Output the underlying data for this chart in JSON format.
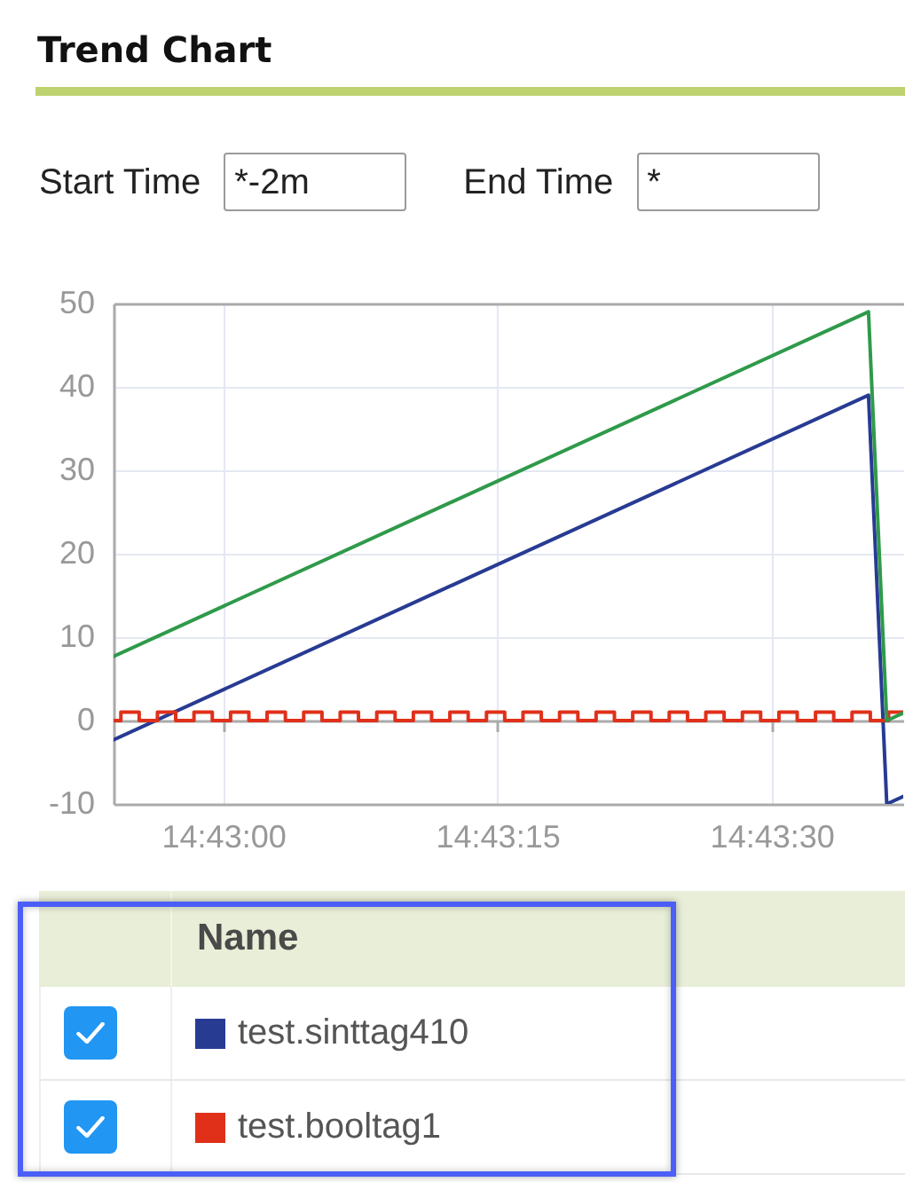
{
  "chart_data": {
    "type": "line",
    "title": "Trend Chart",
    "annotations": [
      "Start Time",
      "*-2m",
      "End Time",
      "*"
    ],
    "legend_title": "Name",
    "series": [
      {
        "name": "test.sinttag410",
        "color": "#283b93",
        "x": [
          14.715,
          14.726472,
          14.72675,
          14.727
        ],
        "values": [
          -2.3,
          39,
          -10,
          -9.1
        ]
      },
      {
        "name": "test.booltag1",
        "color": "#e0301a",
        "type": "step",
        "x": [
          14.715,
          14.715111,
          14.715389,
          14.715667,
          14.715944,
          14.716222,
          14.7165,
          14.716778,
          14.717056,
          14.717333,
          14.717611,
          14.717889,
          14.718167,
          14.718444,
          14.718722,
          14.719,
          14.719278,
          14.719556,
          14.719833,
          14.720111,
          14.720389,
          14.720667,
          14.720944,
          14.721222,
          14.7215,
          14.721778,
          14.722056,
          14.722333,
          14.722611,
          14.722889,
          14.723167,
          14.723444,
          14.723722,
          14.724,
          14.724278,
          14.724556,
          14.724833,
          14.725111,
          14.725389,
          14.725667,
          14.725944,
          14.726222,
          14.7265,
          14.726778,
          14.727
        ],
        "values": [
          0,
          1,
          0,
          1,
          0,
          1,
          0,
          1,
          0,
          1,
          0,
          1,
          0,
          1,
          0,
          1,
          0,
          1,
          0,
          1,
          0,
          1,
          0,
          1,
          0,
          1,
          0,
          1,
          0,
          1,
          0,
          1,
          0,
          1,
          0,
          1,
          0,
          1,
          0,
          1,
          0,
          1,
          0,
          1,
          1
        ]
      },
      {
        "color": "#2f9a4a",
        "x": [
          14.715,
          14.726472,
          14.72675,
          14.727
        ],
        "values": [
          7.7,
          49,
          0,
          0.9
        ]
      }
    ],
    "xlim": [
      14.715,
      14.727
    ],
    "xticks": [
      {
        "value": 14.716667,
        "label": "14:43:00"
      },
      {
        "value": 14.720833,
        "label": "14:43:15"
      },
      {
        "value": 14.725,
        "label": "14:43:30"
      }
    ],
    "ylim": [
      -10,
      50
    ],
    "yticks": [
      -10,
      0,
      10,
      20,
      30,
      40,
      50
    ],
    "grid": true,
    "legend": "bottom"
  }
}
